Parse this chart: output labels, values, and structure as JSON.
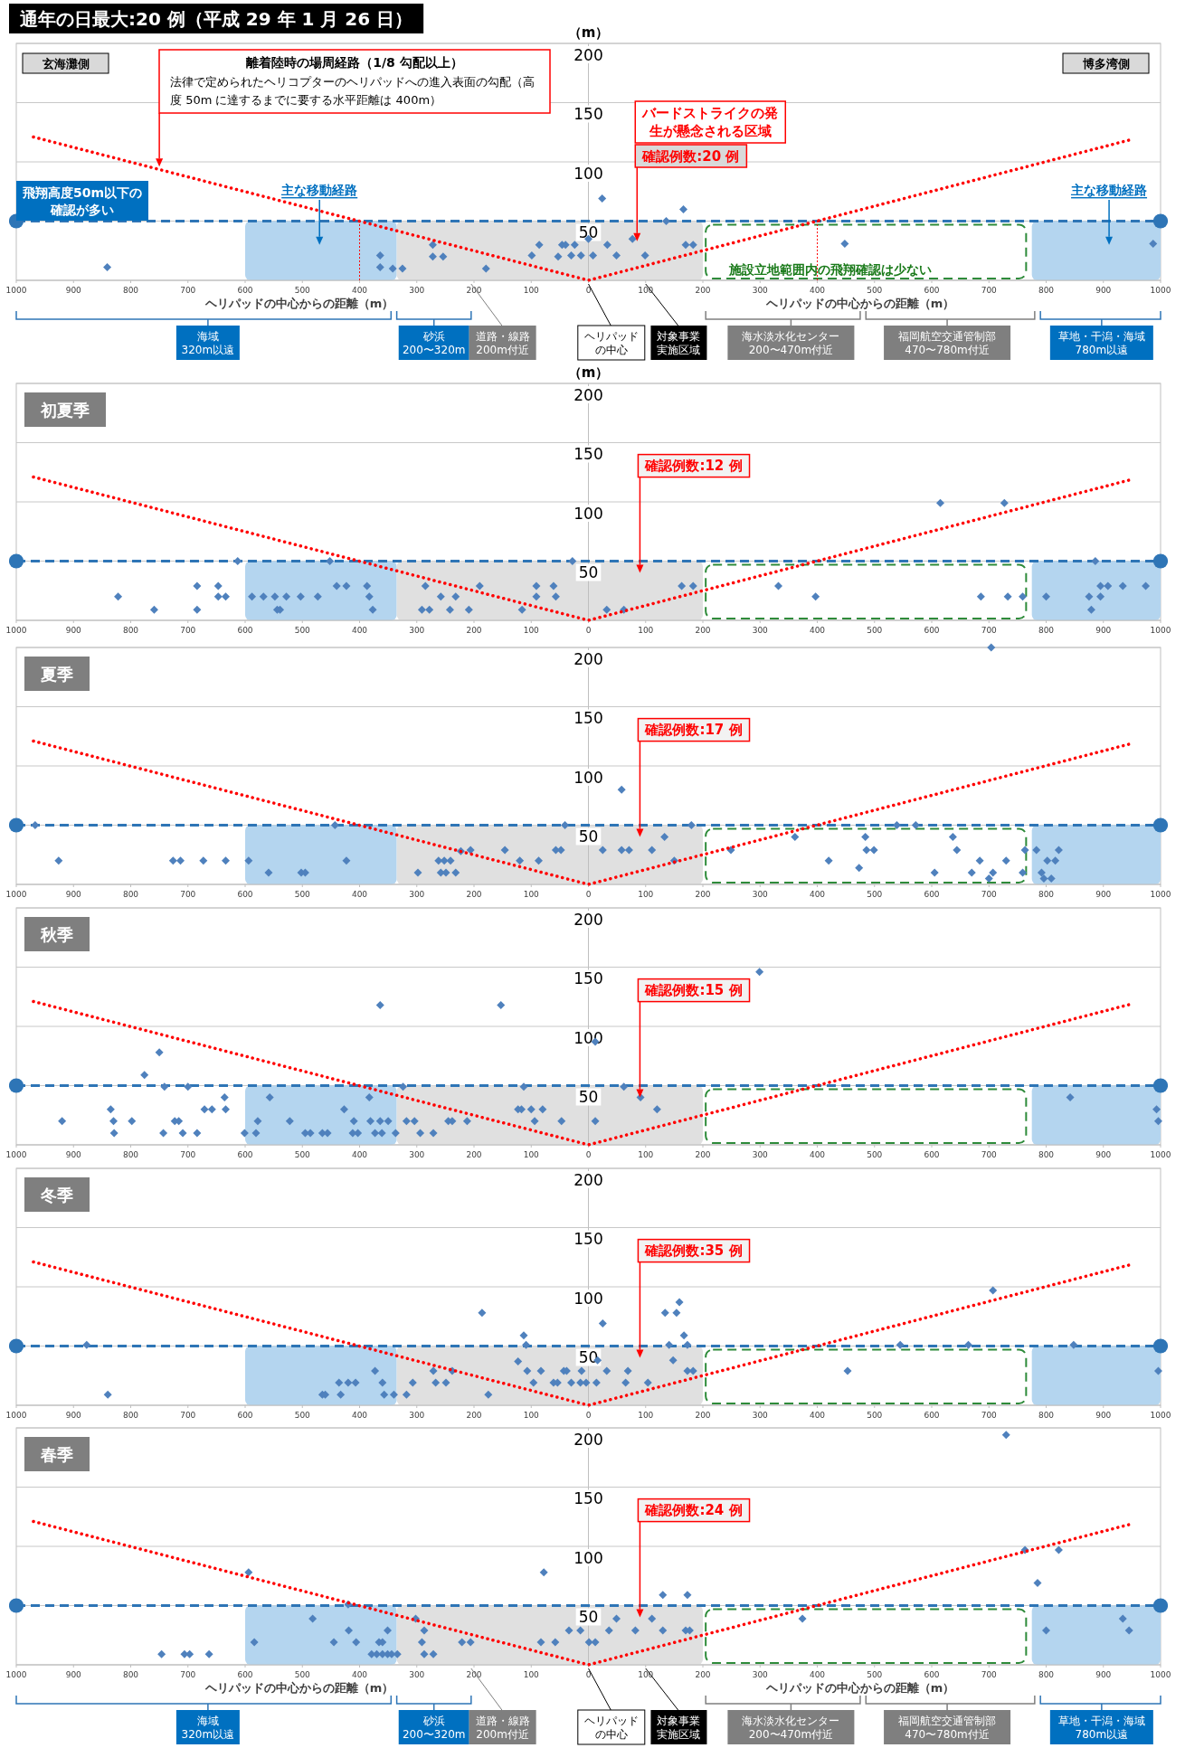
{
  "chart_data": [
    {
      "type": "scatter",
      "title": "通年の日最大:20 例（平成 29 年 1 月 26 日）",
      "ylabel": "（m）",
      "xlim": [
        -1000,
        1000
      ],
      "ylim": [
        0,
        200
      ],
      "grid": "y",
      "xticks": [
        {
          "value": -1000,
          "label": "1000"
        },
        {
          "value": -900,
          "label": "900"
        },
        {
          "value": -800,
          "label": "800"
        },
        {
          "value": -700,
          "label": "700"
        },
        {
          "value": -600,
          "label": "600"
        },
        {
          "value": -500,
          "label": "500"
        },
        {
          "value": -400,
          "label": "400"
        },
        {
          "value": -300,
          "label": "300"
        },
        {
          "value": -200,
          "label": "200"
        },
        {
          "value": -100,
          "label": "100"
        },
        0,
        100,
        200,
        300,
        400,
        500,
        600,
        700,
        800,
        900,
        1000
      ],
      "yticks": [
        50,
        100,
        150,
        200
      ],
      "series": [
        {
          "type": "scatter",
          "marker": "diamond",
          "color": "#4f81bd",
          "x": [
            -841,
            -364,
            -364,
            -342,
            -325,
            -272,
            -272,
            -254,
            -179,
            -99,
            -86,
            -53,
            -46,
            -40,
            -30,
            -24,
            -13,
            0,
            8,
            24,
            33,
            49,
            77,
            99,
            136,
            166,
            170,
            183,
            448,
            987
          ],
          "values": [
            11,
            21,
            11,
            10,
            10,
            30,
            20,
            20,
            10,
            21,
            30,
            20,
            30,
            30,
            21,
            30,
            21,
            35,
            21,
            69,
            30,
            21,
            35,
            21,
            50,
            60,
            30,
            30,
            31,
            31
          ]
        },
        {
          "type": "line",
          "line_style": "dotted",
          "color": "#ff0000",
          "x": [
            -970,
            0,
            950
          ],
          "values": [
            121,
            0,
            119
          ]
        }
      ],
      "ref_lines": [
        {
          "axis": "y",
          "value": 50,
          "color": "#2e75b6",
          "line_style": "dashed"
        },
        {
          "axis": "x",
          "value": -400,
          "color": "#ff0000",
          "line_style": "dotted"
        },
        {
          "axis": "x",
          "value": 400,
          "color": "#ff0000",
          "line_style": "dotted"
        }
      ],
      "bands": [
        {
          "axis": "x",
          "from": -600,
          "to": -335,
          "color": "#b4d5ef"
        },
        {
          "axis": "x",
          "from": 775,
          "to": 1000,
          "color": "#b4d5ef"
        },
        {
          "axis": "x",
          "from": -335,
          "to": 200,
          "color": "#e0e0e0"
        }
      ],
      "annotations": [
        "玄海灘側",
        "博多湾側",
        "離着陸時の場周経路（1/8 勾配以上）",
        "法律で定められたヘリコプターのヘリパッドへの進入表面の勾配（高度 50m に達するまでに要する水平距離は 400m）",
        "バードストライクの発生が懸念される区域",
        "確認例数:20 例",
        "飛翔高度50m以下の確認が多い",
        "主な移動経路",
        "主な移動経路",
        "施設立地範囲内の飛翔確認は少ない",
        "ヘリパッドの中心からの距離（m）",
        "ヘリパッドの中心からの距離（m）",
        "海域 320m以遠",
        "砂浜 200〜320m",
        "道路・線路 200m付近",
        "ヘリパッドの中心",
        "対象事業実施区域",
        "海水淡水化センター 200〜470m付近",
        "福岡航空交通管制部 470〜780m付近",
        "草地・干潟・海域 780m以遠"
      ]
    },
    {
      "type": "scatter",
      "title": "初夏季",
      "ylabel": "（m）",
      "xlim": [
        -1000,
        1000
      ],
      "ylim": [
        0,
        200
      ],
      "grid": "y",
      "xticks": [
        {
          "value": -1000,
          "label": "1000"
        },
        {
          "value": -900,
          "label": "900"
        },
        {
          "value": -800,
          "label": "800"
        },
        {
          "value": -700,
          "label": "700"
        },
        {
          "value": -600,
          "label": "600"
        },
        {
          "value": -500,
          "label": "500"
        },
        {
          "value": -400,
          "label": "400"
        },
        {
          "value": -300,
          "label": "300"
        },
        {
          "value": -200,
          "label": "200"
        },
        {
          "value": -100,
          "label": "100"
        },
        0,
        100,
        200,
        300,
        400,
        500,
        600,
        700,
        800,
        900,
        1000
      ],
      "yticks": [
        50,
        100,
        150,
        200
      ],
      "series": [
        {
          "type": "scatter",
          "marker": "diamond",
          "color": "#4f81bd",
          "x": [
            -822,
            -759,
            -684,
            -684,
            -647,
            -647,
            -634,
            -613,
            -588,
            -568,
            -548,
            -544,
            -539,
            -528,
            -503,
            -473,
            -452,
            -440,
            -423,
            -387,
            -383,
            -377,
            -291,
            -285,
            -278,
            -258,
            -242,
            -232,
            -209,
            -190,
            -116,
            -91,
            -91,
            -61,
            -57,
            -28,
            32,
            62,
            163,
            183,
            332,
            397,
            615,
            686,
            727,
            733,
            759,
            800,
            875,
            879,
            886,
            895,
            895,
            908,
            934,
            974
          ],
          "values": [
            20,
            9,
            29,
            9,
            29,
            20,
            20,
            50,
            20,
            20,
            20,
            9,
            9,
            20,
            20,
            20,
            50,
            29,
            29,
            29,
            20,
            9,
            9,
            29,
            9,
            20,
            9,
            20,
            9,
            29,
            9,
            29,
            20,
            29,
            20,
            50,
            9,
            9,
            29,
            29,
            29,
            20,
            99,
            20,
            99,
            20,
            20,
            20,
            20,
            9,
            50,
            29,
            20,
            29,
            29,
            29
          ]
        },
        {
          "type": "line",
          "line_style": "dotted",
          "color": "#ff0000",
          "x": [
            -970,
            0,
            950
          ],
          "values": [
            121,
            0,
            119
          ]
        }
      ],
      "ref_lines": [
        {
          "axis": "y",
          "value": 50,
          "color": "#2e75b6",
          "line_style": "dashed"
        }
      ],
      "bands": [
        {
          "axis": "x",
          "from": -600,
          "to": -335,
          "color": "#b4d5ef"
        },
        {
          "axis": "x",
          "from": 775,
          "to": 1000,
          "color": "#b4d5ef"
        },
        {
          "axis": "x",
          "from": -335,
          "to": 200,
          "color": "#e0e0e0"
        }
      ],
      "annotations": [
        "確認例数:12 例"
      ]
    },
    {
      "type": "scatter",
      "title": "夏季",
      "xlim": [
        -1000,
        1000
      ],
      "ylim": [
        0,
        200
      ],
      "grid": "y",
      "xticks": [
        {
          "value": -1000,
          "label": "1000"
        },
        {
          "value": -900,
          "label": "900"
        },
        {
          "value": -800,
          "label": "800"
        },
        {
          "value": -700,
          "label": "700"
        },
        {
          "value": -600,
          "label": "600"
        },
        {
          "value": -500,
          "label": "500"
        },
        {
          "value": -400,
          "label": "400"
        },
        {
          "value": -300,
          "label": "300"
        },
        {
          "value": -200,
          "label": "200"
        },
        {
          "value": -100,
          "label": "100"
        },
        0,
        100,
        200,
        300,
        400,
        500,
        600,
        700,
        800,
        900,
        1000
      ],
      "yticks": [
        50,
        100,
        150,
        200
      ],
      "series": [
        {
          "type": "scatter",
          "marker": "diamond",
          "color": "#4f81bd",
          "x": [
            -967,
            -926,
            -726,
            -713,
            -673,
            -634,
            -594,
            -559,
            -502,
            -495,
            -443,
            -423,
            -298,
            -262,
            -258,
            -252,
            -241,
            -249,
            -232,
            -223,
            -206,
            -146,
            -120,
            -87,
            -57,
            -48,
            -41,
            25,
            58,
            58,
            71,
            111,
            133,
            150,
            180,
            249,
            361,
            420,
            473,
            484,
            486,
            499,
            539,
            572,
            605,
            637,
            644,
            670,
            684,
            700,
            707,
            730,
            759,
            763,
            783,
            792,
            802,
            796,
            809,
            822,
            816,
            704
          ],
          "values": [
            50,
            20,
            20,
            20,
            20,
            20,
            20,
            10,
            10,
            10,
            50,
            20,
            10,
            20,
            10,
            20,
            20,
            10,
            10,
            28,
            29,
            29,
            20,
            20,
            29,
            29,
            50,
            29,
            80,
            29,
            29,
            29,
            40,
            20,
            50,
            29,
            40,
            20,
            14,
            40,
            29,
            29,
            50,
            50,
            10,
            40,
            29,
            10,
            20,
            5,
            10,
            20,
            10,
            29,
            29,
            10,
            20,
            5,
            5,
            29,
            20,
            200
          ]
        },
        {
          "type": "line",
          "line_style": "dotted",
          "color": "#ff0000",
          "x": [
            -970,
            0,
            950
          ],
          "values": [
            121,
            0,
            119
          ]
        }
      ],
      "ref_lines": [
        {
          "axis": "y",
          "value": 50,
          "color": "#2e75b6",
          "line_style": "dashed"
        }
      ],
      "bands": [
        {
          "axis": "x",
          "from": -600,
          "to": -335,
          "color": "#b4d5ef"
        },
        {
          "axis": "x",
          "from": 775,
          "to": 1000,
          "color": "#b4d5ef"
        },
        {
          "axis": "x",
          "from": -335,
          "to": 200,
          "color": "#e0e0e0"
        }
      ],
      "annotations": [
        "確認例数:17 例"
      ]
    },
    {
      "type": "scatter",
      "title": "秋季",
      "xlim": [
        -1000,
        1000
      ],
      "ylim": [
        0,
        200
      ],
      "grid": "y",
      "xticks": [
        {
          "value": -1000,
          "label": "1000"
        },
        {
          "value": -900,
          "label": "900"
        },
        {
          "value": -800,
          "label": "800"
        },
        {
          "value": -700,
          "label": "700"
        },
        {
          "value": -600,
          "label": "600"
        },
        {
          "value": -500,
          "label": "500"
        },
        {
          "value": -400,
          "label": "400"
        },
        {
          "value": -300,
          "label": "300"
        },
        {
          "value": -200,
          "label": "200"
        },
        {
          "value": -100,
          "label": "100"
        },
        0,
        100,
        200,
        300,
        400,
        500,
        600,
        700,
        800,
        900,
        1000
      ],
      "yticks": [
        50,
        100,
        150,
        200
      ],
      "series": [
        {
          "type": "scatter",
          "marker": "diamond",
          "color": "#4f81bd",
          "x": [
            -920,
            -835,
            -830,
            -829,
            -798,
            -776,
            -750,
            -743,
            -741,
            -723,
            -716,
            -709,
            -700,
            -684,
            -671,
            -658,
            -636,
            -634,
            -601,
            -578,
            -581,
            -557,
            -522,
            -495,
            -486,
            -465,
            -456,
            -427,
            -410,
            -412,
            -403,
            -383,
            -381,
            -373,
            -364,
            -364,
            -361,
            -350,
            -337,
            -318,
            -304,
            -294,
            -271,
            -245,
            -238,
            -212,
            -153,
            -123,
            -117,
            -100,
            -94,
            -80,
            -47,
            12,
            12,
            62,
            91,
            120,
            299,
            842,
            993,
            996,
            -324,
            -113
          ],
          "values": [
            20,
            30,
            20,
            10,
            20,
            59,
            78,
            10,
            49,
            20,
            20,
            10,
            49,
            10,
            30,
            30,
            40,
            30,
            10,
            20,
            10,
            40,
            20,
            10,
            10,
            10,
            10,
            30,
            20,
            10,
            10,
            40,
            20,
            10,
            20,
            118,
            10,
            20,
            10,
            20,
            20,
            10,
            10,
            20,
            20,
            20,
            118,
            30,
            30,
            30,
            20,
            30,
            20,
            20,
            87,
            49,
            40,
            30,
            146,
            40,
            30,
            20,
            49,
            49
          ]
        },
        {
          "type": "line",
          "line_style": "dotted",
          "color": "#ff0000",
          "x": [
            -970,
            0,
            950
          ],
          "values": [
            121,
            0,
            119
          ]
        }
      ],
      "ref_lines": [
        {
          "axis": "y",
          "value": 50,
          "color": "#2e75b6",
          "line_style": "dashed"
        }
      ],
      "bands": [
        {
          "axis": "x",
          "from": -600,
          "to": -335,
          "color": "#b4d5ef"
        },
        {
          "axis": "x",
          "from": 775,
          "to": 1000,
          "color": "#b4d5ef"
        },
        {
          "axis": "x",
          "from": -335,
          "to": 200,
          "color": "#e0e0e0"
        }
      ],
      "annotations": [
        "確認例数:15 例"
      ]
    },
    {
      "type": "scatter",
      "title": "冬季",
      "xlim": [
        -1000,
        1000
      ],
      "ylim": [
        0,
        200
      ],
      "grid": "y",
      "xticks": [
        {
          "value": -1000,
          "label": "1000"
        },
        {
          "value": -900,
          "label": "900"
        },
        {
          "value": -800,
          "label": "800"
        },
        {
          "value": -700,
          "label": "700"
        },
        {
          "value": -600,
          "label": "600"
        },
        {
          "value": -500,
          "label": "500"
        },
        {
          "value": -400,
          "label": "400"
        },
        {
          "value": -300,
          "label": "300"
        },
        {
          "value": -200,
          "label": "200"
        },
        {
          "value": -100,
          "label": "100"
        },
        0,
        100,
        200,
        300,
        400,
        500,
        600,
        700,
        800,
        900,
        1000
      ],
      "yticks": [
        50,
        100,
        150,
        200
      ],
      "series": [
        {
          "type": "scatter",
          "marker": "diamond",
          "color": "#4f81bd",
          "x": [
            -877,
            -840,
            -465,
            -460,
            -436,
            -433,
            -420,
            -407,
            -373,
            -360,
            -357,
            -340,
            -318,
            -307,
            -271,
            -267,
            -249,
            -238,
            -186,
            -175,
            -123,
            -113,
            -109,
            -107,
            -96,
            -83,
            -61,
            -54,
            -43,
            -38,
            -30,
            -14,
            -12,
            -4,
            14,
            16,
            25,
            32,
            65,
            69,
            104,
            134,
            141,
            154,
            159,
            167,
            173,
            173,
            183,
            148,
            453,
            545,
            664,
            707,
            848,
            996
          ],
          "values": [
            51,
            9,
            9,
            9,
            19,
            9,
            19,
            19,
            29,
            19,
            9,
            9,
            9,
            19,
            29,
            19,
            19,
            29,
            78,
            9,
            37,
            59,
            51,
            29,
            19,
            29,
            19,
            19,
            29,
            29,
            19,
            19,
            29,
            19,
            19,
            38,
            69,
            29,
            19,
            29,
            19,
            78,
            51,
            78,
            87,
            59,
            29,
            51,
            29,
            38,
            29,
            51,
            51,
            97,
            51,
            29
          ]
        },
        {
          "type": "line",
          "line_style": "dotted",
          "color": "#ff0000",
          "x": [
            -970,
            0,
            950
          ],
          "values": [
            121,
            0,
            119
          ]
        }
      ],
      "ref_lines": [
        {
          "axis": "y",
          "value": 50,
          "color": "#2e75b6",
          "line_style": "dashed"
        }
      ],
      "bands": [
        {
          "axis": "x",
          "from": -600,
          "to": -335,
          "color": "#b4d5ef"
        },
        {
          "axis": "x",
          "from": 775,
          "to": 1000,
          "color": "#b4d5ef"
        },
        {
          "axis": "x",
          "from": -335,
          "to": 200,
          "color": "#e0e0e0"
        }
      ],
      "annotations": [
        "確認例数:35 例"
      ]
    },
    {
      "type": "scatter",
      "title": "春季",
      "xlim": [
        -1000,
        1000
      ],
      "ylim": [
        0,
        200
      ],
      "grid": "y",
      "xticks": [
        {
          "value": -1000,
          "label": "1000"
        },
        {
          "value": -900,
          "label": "900"
        },
        {
          "value": -800,
          "label": "800"
        },
        {
          "value": -700,
          "label": "700"
        },
        {
          "value": -600,
          "label": "600"
        },
        {
          "value": -500,
          "label": "500"
        },
        {
          "value": -400,
          "label": "400"
        },
        {
          "value": -300,
          "label": "300"
        },
        {
          "value": -200,
          "label": "200"
        },
        {
          "value": -100,
          "label": "100"
        },
        0,
        100,
        200,
        300,
        400,
        500,
        600,
        700,
        800,
        900,
        1000
      ],
      "yticks": [
        50,
        100,
        150,
        200
      ],
      "series": [
        {
          "type": "scatter",
          "marker": "diamond",
          "color": "#4f81bd",
          "x": [
            -746,
            -706,
            -697,
            -663,
            -594,
            -584,
            -482,
            -445,
            -420,
            -419,
            -406,
            -379,
            -370,
            -366,
            -360,
            -360,
            -351,
            -351,
            -344,
            -334,
            -302,
            -291,
            -287,
            -287,
            -271,
            -221,
            -206,
            -83,
            -78,
            -58,
            -34,
            -14,
            1,
            12,
            36,
            49,
            82,
            111,
            130,
            130,
            170,
            173,
            177,
            374,
            730,
            763,
            785,
            800,
            822,
            934,
            945
          ],
          "values": [
            9,
            9,
            9,
            9,
            78,
            19,
            39,
            19,
            51,
            29,
            19,
            9,
            9,
            19,
            19,
            9,
            9,
            29,
            9,
            9,
            39,
            19,
            29,
            9,
            9,
            19,
            19,
            19,
            78,
            19,
            29,
            29,
            19,
            19,
            29,
            39,
            29,
            39,
            59,
            29,
            29,
            59,
            29,
            39,
            194,
            97,
            69,
            29,
            97,
            39,
            29
          ]
        },
        {
          "type": "line",
          "line_style": "dotted",
          "color": "#ff0000",
          "x": [
            -970,
            0,
            950
          ],
          "values": [
            121,
            0,
            119
          ]
        }
      ],
      "ref_lines": [
        {
          "axis": "y",
          "value": 50,
          "color": "#2e75b6",
          "line_style": "dashed"
        }
      ],
      "bands": [
        {
          "axis": "x",
          "from": -600,
          "to": -335,
          "color": "#b4d5ef"
        },
        {
          "axis": "x",
          "from": 775,
          "to": 1000,
          "color": "#b4d5ef"
        },
        {
          "axis": "x",
          "from": -335,
          "to": 200,
          "color": "#e0e0e0"
        }
      ],
      "annotations": [
        "確認例数:24 例",
        "ヘリパッドの中心からの距離（m）",
        "ヘリパッドの中心からの距離（m）",
        "海域 320m以遠",
        "砂浜 200〜320m",
        "道路・線路 200m付近",
        "ヘリパッドの中心",
        "対象事業実施区域",
        "海水淡水化センター 200〜470m付近",
        "福岡航空交通管制部 470〜780m付近",
        "草地・干潟・海域 780m以遠"
      ]
    }
  ]
}
